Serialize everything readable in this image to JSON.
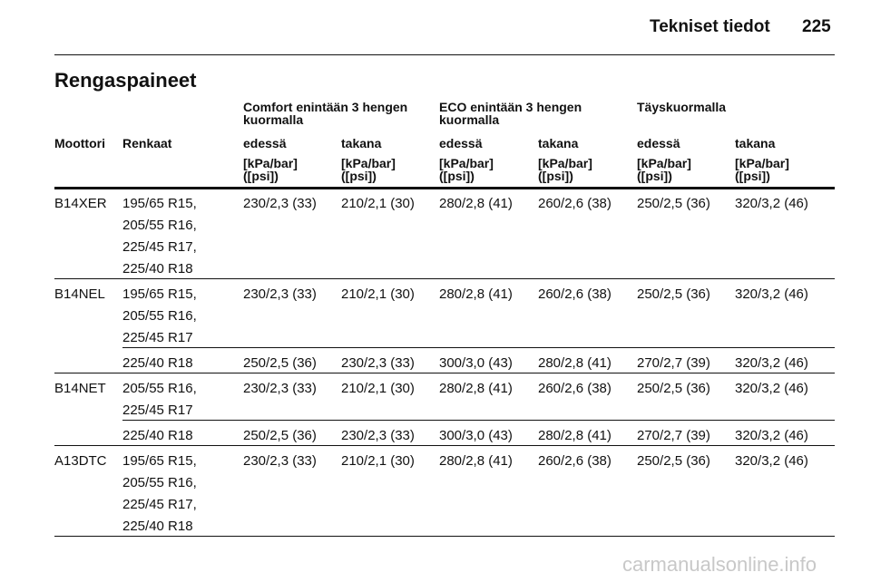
{
  "header": {
    "section": "Tekniset tiedot",
    "page": "225"
  },
  "title": "Rengaspaineet",
  "table": {
    "group_headers": [
      "Comfort enintään 3 hengen kuormalla",
      "ECO enintään 3 hengen kuormalla",
      "Täyskuormalla"
    ],
    "columns": [
      "Moottori",
      "Renkaat",
      "edessä",
      "takana",
      "edessä",
      "takana",
      "edessä",
      "takana"
    ],
    "units": [
      [
        "[kPa/bar]",
        "([psi])"
      ],
      [
        "[kPa/bar]",
        "([psi])"
      ],
      [
        "[kPa/bar]",
        "([psi])"
      ],
      [
        "[kPa/bar]",
        "([psi])"
      ],
      [
        "[kPa/bar]",
        "([psi])"
      ],
      [
        "[kPa/bar]",
        "([psi])"
      ]
    ],
    "groups": [
      {
        "engine": "B14XER",
        "rows": [
          {
            "tyres": [
              "195/65 R15,",
              "205/55 R16,",
              "225/45 R17,",
              "225/40 R18"
            ],
            "values": [
              "230/2,3 (33)",
              "210/2,1 (30)",
              "280/2,8 (41)",
              "260/2,6 (38)",
              "250/2,5 (36)",
              "320/3,2 (46)"
            ]
          }
        ]
      },
      {
        "engine": "B14NEL",
        "rows": [
          {
            "tyres": [
              "195/65 R15,",
              "205/55 R16,",
              "225/45 R17"
            ],
            "values": [
              "230/2,3 (33)",
              "210/2,1 (30)",
              "280/2,8 (41)",
              "260/2,6 (38)",
              "250/2,5 (36)",
              "320/3,2 (46)"
            ]
          },
          {
            "tyres": [
              "225/40 R18"
            ],
            "values": [
              "250/2,5 (36)",
              "230/2,3 (33)",
              "300/3,0 (43)",
              "280/2,8 (41)",
              "270/2,7 (39)",
              "320/3,2 (46)"
            ]
          }
        ]
      },
      {
        "engine": "B14NET",
        "rows": [
          {
            "tyres": [
              "205/55 R16,",
              "225/45 R17"
            ],
            "values": [
              "230/2,3 (33)",
              "210/2,1 (30)",
              "280/2,8 (41)",
              "260/2,6 (38)",
              "250/2,5 (36)",
              "320/3,2 (46)"
            ]
          },
          {
            "tyres": [
              "225/40 R18"
            ],
            "values": [
              "250/2,5 (36)",
              "230/2,3 (33)",
              "300/3,0 (43)",
              "280/2,8 (41)",
              "270/2,7 (39)",
              "320/3,2 (46)"
            ]
          }
        ]
      },
      {
        "engine": "A13DTC",
        "rows": [
          {
            "tyres": [
              "195/65 R15,",
              "205/55 R16,",
              "225/45 R17,",
              "225/40 R18"
            ],
            "values": [
              "230/2,3 (33)",
              "210/2,1 (30)",
              "280/2,8 (41)",
              "260/2,6 (38)",
              "250/2,5 (36)",
              "320/3,2 (46)"
            ]
          }
        ]
      }
    ]
  },
  "watermark": "carmanualsonline.info"
}
